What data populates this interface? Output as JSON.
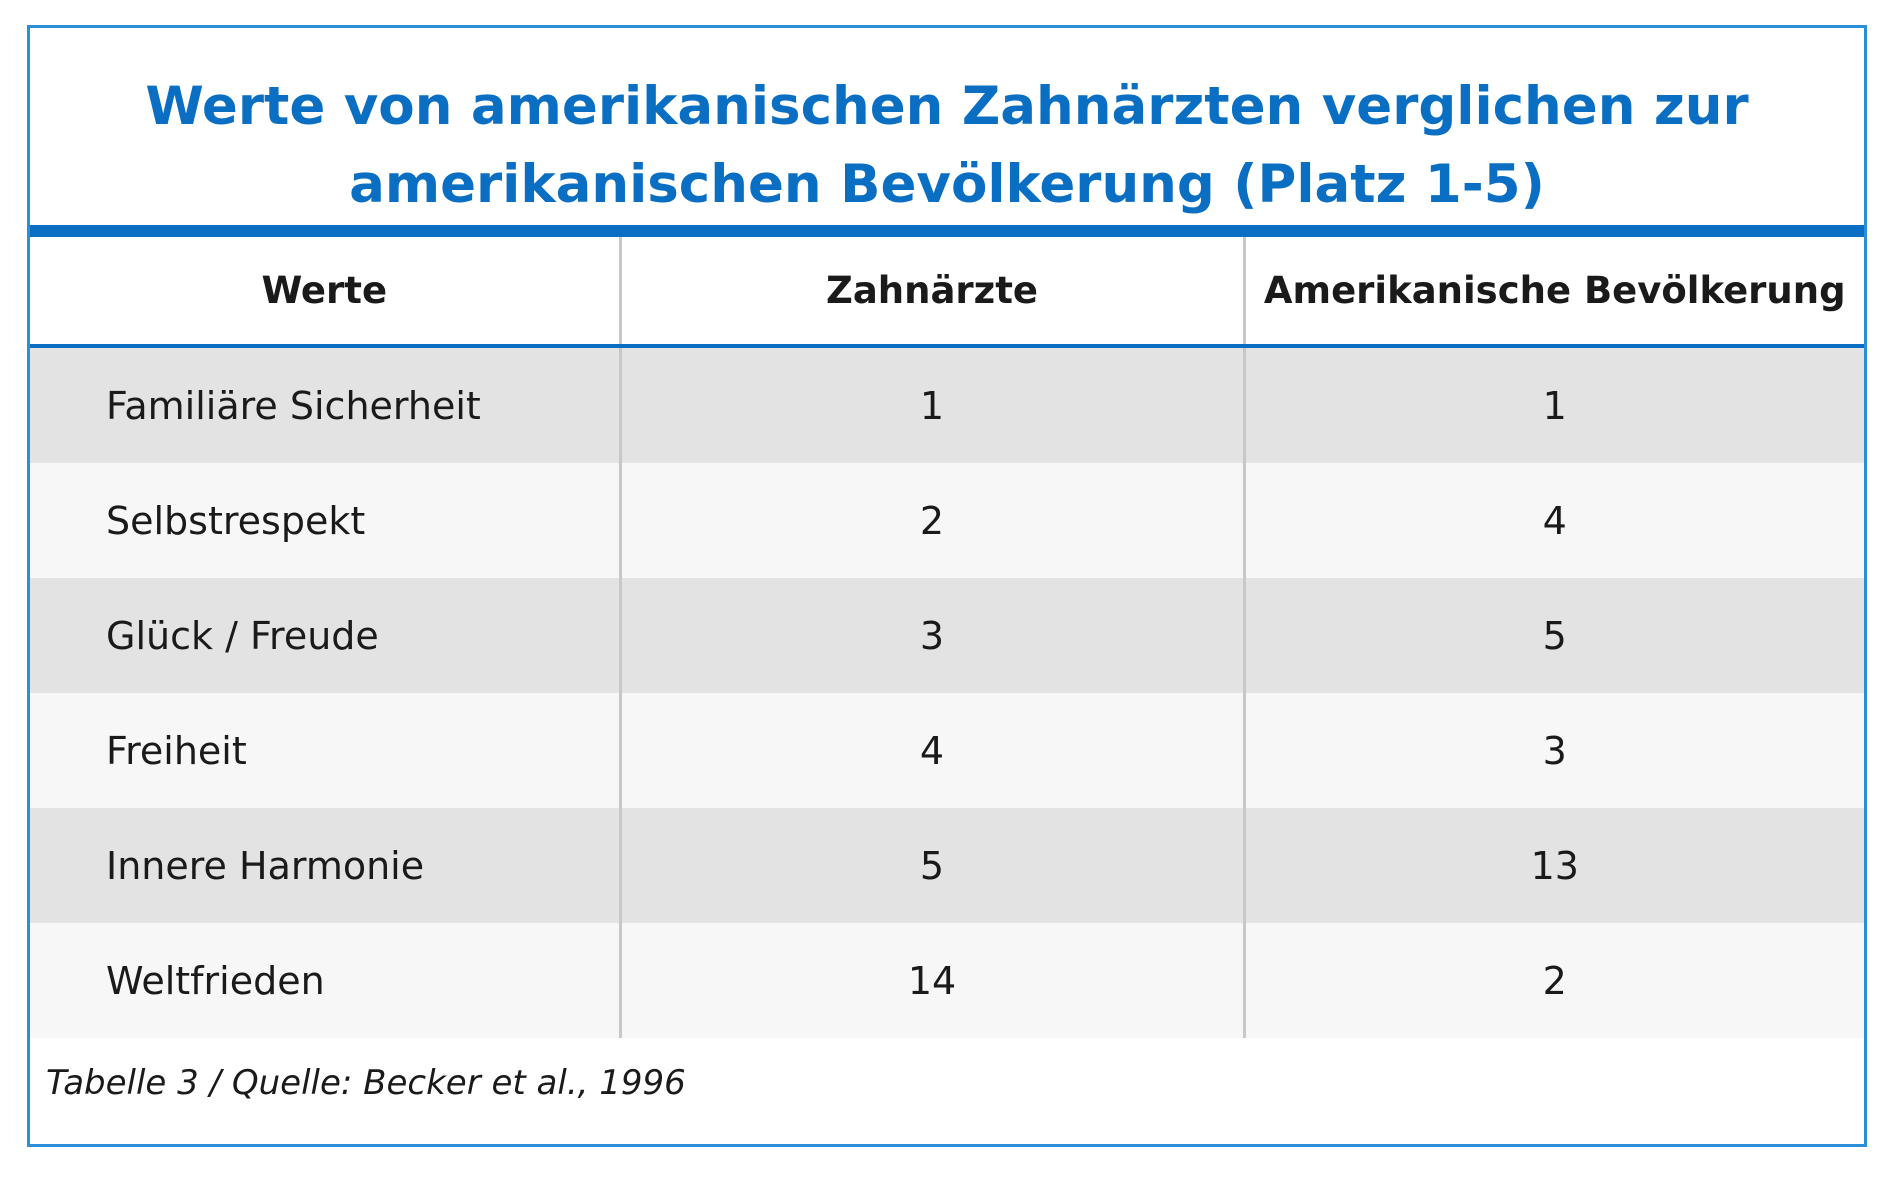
{
  "title_lines": [
    "Werte von amerikanischen Zahnärzten verglichen zur",
    "amerikanischen Bevölkerung (Platz 1-5)"
  ],
  "table": {
    "columns": [
      "Werte",
      "Zahnärzte",
      "Amerikanische Bevölkerung"
    ],
    "rows": [
      [
        "Familiäre Sicherheit",
        "1",
        "1"
      ],
      [
        "Selbstrespekt",
        "2",
        "4"
      ],
      [
        "Glück / Freude",
        "3",
        "5"
      ],
      [
        "Freiheit",
        "4",
        "3"
      ],
      [
        "Innere Harmonie",
        "5",
        "13"
      ],
      [
        "Weltfrieden",
        "14",
        "2"
      ]
    ]
  },
  "source": "Tabelle 3 / Quelle: Becker et al., 1996",
  "colors": {
    "accent_blue": "#0a6fc2",
    "frame_blue": "#2a8fd6",
    "row_dark": "#e3e3e3",
    "row_light": "#f7f7f7"
  }
}
